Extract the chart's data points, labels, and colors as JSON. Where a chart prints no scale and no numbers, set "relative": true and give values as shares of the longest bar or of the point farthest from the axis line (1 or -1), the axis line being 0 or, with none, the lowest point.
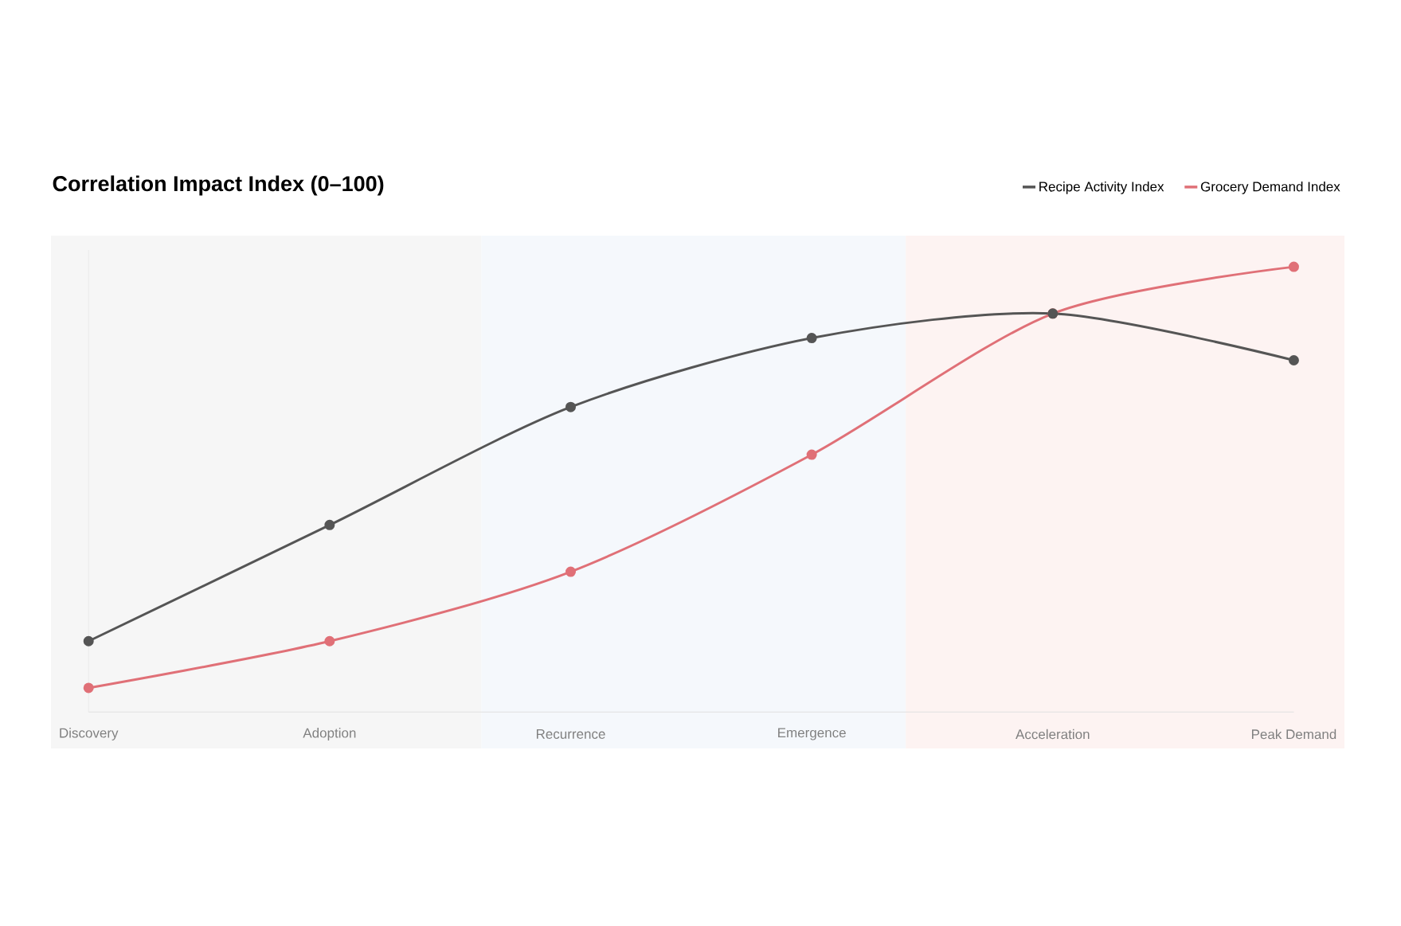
{
  "chart_data": {
    "type": "line",
    "title": "Correlation Impact Index (0–100)",
    "categories": [
      "Discovery",
      "Adoption",
      "Recurrence",
      "Emergence",
      "Acceleration",
      "Peak Demand"
    ],
    "relative": true,
    "marker": "circle",
    "legend": "top right",
    "series": [
      {
        "name": "Recipe Activity Index",
        "color": "#555555",
        "values": [
          0.159,
          0.42,
          0.685,
          0.84,
          0.895,
          0.79
        ]
      },
      {
        "name": "Grocery Demand Index",
        "color": "#e07077",
        "values": [
          0.054,
          0.159,
          0.315,
          0.578,
          0.895,
          1
        ]
      }
    ]
  }
}
